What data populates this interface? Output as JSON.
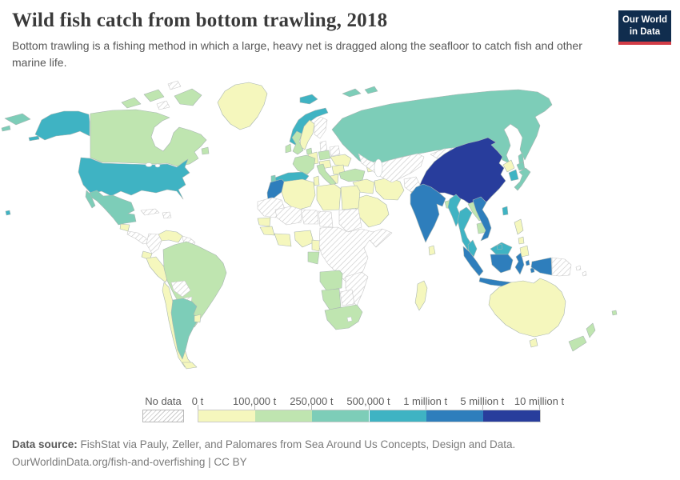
{
  "header": {
    "title": "Wild fish catch from bottom trawling, 2018",
    "subtitle": "Bottom trawling is a fishing method in which a large, heavy net is dragged along the seafloor to catch fish and other marine life."
  },
  "logo": {
    "line1": "Our World",
    "line2": "in Data",
    "bg_color": "#102d4e",
    "accent_color": "#d23c46"
  },
  "legend": {
    "no_data_label": "No data",
    "tick_labels": [
      "0 t",
      "100,000 t",
      "250,000 t",
      "500,000 t",
      "1 million t",
      "5 million t",
      "10 million t"
    ],
    "bin_colors": [
      "#f5f7bd",
      "#bfe5b0",
      "#7dcdb8",
      "#3fb3c3",
      "#2e7ebc",
      "#283d9c"
    ]
  },
  "footer": {
    "source_label": "Data source:",
    "source_text": " FishStat via Pauly, Zeller, and Palomares from Sea Around Us Concepts, Design and Data.",
    "link_text": "OurWorldinData.org/fish-and-overfishing",
    "separator": " | ",
    "license_text": "CC BY"
  },
  "chart_data": {
    "type": "choropleth",
    "title": "Wild fish catch from bottom trawling, 2018",
    "unit": "tonnes",
    "bin_edges": [
      "0 t",
      "100,000 t",
      "250,000 t",
      "500,000 t",
      "1 million t",
      "5 million t",
      "10 million t"
    ],
    "no_data_label": "No data",
    "countries": [
      {
        "id": "china",
        "name": "China",
        "bin": 5
      },
      {
        "id": "india",
        "name": "India",
        "bin": 4
      },
      {
        "id": "vietnam",
        "name": "Vietnam",
        "bin": 4
      },
      {
        "id": "indonesia",
        "name": "Indonesia",
        "bin": 4
      },
      {
        "id": "morocco",
        "name": "Morocco",
        "bin": 4
      },
      {
        "id": "united-states",
        "name": "United States",
        "bin": 3
      },
      {
        "id": "spain",
        "name": "Spain",
        "bin": 3
      },
      {
        "id": "norway",
        "name": "Norway",
        "bin": 3
      },
      {
        "id": "iceland",
        "name": "Iceland",
        "bin": 3
      },
      {
        "id": "myanmar",
        "name": "Myanmar",
        "bin": 3
      },
      {
        "id": "thailand",
        "name": "Thailand",
        "bin": 3
      },
      {
        "id": "south-korea",
        "name": "South Korea",
        "bin": 3
      },
      {
        "id": "taiwan",
        "name": "Taiwan",
        "bin": 3
      },
      {
        "id": "malaysia",
        "name": "Malaysia",
        "bin": 3
      },
      {
        "id": "brunei",
        "name": "Brunei",
        "bin": 3
      },
      {
        "id": "russia",
        "name": "Russia",
        "bin": 2
      },
      {
        "id": "mexico",
        "name": "Mexico",
        "bin": 2
      },
      {
        "id": "argentina",
        "name": "Argentina",
        "bin": 2
      },
      {
        "id": "japan",
        "name": "Japan",
        "bin": 2
      },
      {
        "id": "portugal",
        "name": "Portugal",
        "bin": 2
      },
      {
        "id": "canada",
        "name": "Canada",
        "bin": 1
      },
      {
        "id": "brazil",
        "name": "Brazil",
        "bin": 1
      },
      {
        "id": "united-kingdom",
        "name": "United Kingdom",
        "bin": 1
      },
      {
        "id": "ireland",
        "name": "Ireland",
        "bin": 1
      },
      {
        "id": "france",
        "name": "France",
        "bin": 1
      },
      {
        "id": "poland",
        "name": "Poland",
        "bin": 1
      },
      {
        "id": "italy",
        "name": "Italy",
        "bin": 1
      },
      {
        "id": "denmark",
        "name": "Denmark",
        "bin": 1
      },
      {
        "id": "turkey",
        "name": "Turkey",
        "bin": 1
      },
      {
        "id": "gabon",
        "name": "Gabon",
        "bin": 1
      },
      {
        "id": "angola",
        "name": "Angola",
        "bin": 1
      },
      {
        "id": "namibia",
        "name": "Namibia",
        "bin": 1
      },
      {
        "id": "south-africa",
        "name": "South Africa",
        "bin": 1
      },
      {
        "id": "new-zealand",
        "name": "New Zealand",
        "bin": 1
      },
      {
        "id": "bangladesh",
        "name": "Bangladesh",
        "bin": 1
      },
      {
        "id": "laos",
        "name": "Laos",
        "bin": 1
      },
      {
        "id": "cambodia",
        "name": "Cambodia",
        "bin": 1
      },
      {
        "id": "fiji",
        "name": "Fiji",
        "bin": 1
      },
      {
        "id": "greenland",
        "name": "Greenland",
        "bin": 0
      },
      {
        "id": "sweden",
        "name": "Sweden",
        "bin": 0
      },
      {
        "id": "germany",
        "name": "Germany",
        "bin": 0
      },
      {
        "id": "central-europe",
        "name": "Austria / Hungary",
        "bin": 0
      },
      {
        "id": "ukraine",
        "name": "Ukraine",
        "bin": 0
      },
      {
        "id": "romania",
        "name": "Romania",
        "bin": 0
      },
      {
        "id": "greece",
        "name": "Greece",
        "bin": 0
      },
      {
        "id": "caucasus",
        "name": "Georgia / Azerbaijan",
        "bin": 0
      },
      {
        "id": "algeria",
        "name": "Algeria",
        "bin": 0
      },
      {
        "id": "tunisia",
        "name": "Tunisia",
        "bin": 0
      },
      {
        "id": "libya",
        "name": "Libya",
        "bin": 0
      },
      {
        "id": "egypt",
        "name": "Egypt",
        "bin": 0
      },
      {
        "id": "senegal",
        "name": "Senegal",
        "bin": 0
      },
      {
        "id": "guinea",
        "name": "Guinea",
        "bin": 0
      },
      {
        "id": "ghana",
        "name": "Ghana / Côte d'Ivoire",
        "bin": 0
      },
      {
        "id": "nigeria",
        "name": "Nigeria",
        "bin": 0
      },
      {
        "id": "cameroon",
        "name": "Cameroon",
        "bin": 0
      },
      {
        "id": "madagascar",
        "name": "Madagascar",
        "bin": 0
      },
      {
        "id": "saudi-arabia",
        "name": "Saudi Arabia",
        "bin": 0
      },
      {
        "id": "iran",
        "name": "Iran",
        "bin": 0
      },
      {
        "id": "iraq",
        "name": "Iraq / Syria",
        "bin": 0
      },
      {
        "id": "pakistan",
        "name": "Pakistan",
        "bin": 0
      },
      {
        "id": "north-korea",
        "name": "North Korea",
        "bin": 0
      },
      {
        "id": "philippines",
        "name": "Philippines",
        "bin": 0
      },
      {
        "id": "sri-lanka",
        "name": "Sri Lanka",
        "bin": 0
      },
      {
        "id": "australia",
        "name": "Australia",
        "bin": 0
      },
      {
        "id": "chile",
        "name": "Chile",
        "bin": 0
      },
      {
        "id": "peru",
        "name": "Peru",
        "bin": 0
      },
      {
        "id": "ecuador",
        "name": "Ecuador",
        "bin": 0
      },
      {
        "id": "venezuela",
        "name": "Venezuela",
        "bin": 0
      },
      {
        "id": "uruguay",
        "name": "Uruguay",
        "bin": 0
      },
      {
        "id": "guatemala",
        "name": "Guatemala",
        "bin": 0
      },
      {
        "id": "mongolia",
        "name": "Mongolia",
        "bin": "no_data"
      },
      {
        "id": "kazakhstan",
        "name": "Kazakhstan / Central Asia",
        "bin": "no_data"
      },
      {
        "id": "afghanistan",
        "name": "Afghanistan",
        "bin": "no_data"
      },
      {
        "id": "finland",
        "name": "Finland",
        "bin": "no_data"
      },
      {
        "id": "belarus",
        "name": "Belarus",
        "bin": "no_data"
      },
      {
        "id": "baltics",
        "name": "Baltic states",
        "bin": "no_data"
      },
      {
        "id": "colombia",
        "name": "Colombia",
        "bin": "no_data"
      },
      {
        "id": "bolivia",
        "name": "Bolivia",
        "bin": "no_data"
      },
      {
        "id": "paraguay",
        "name": "Paraguay",
        "bin": "no_data"
      },
      {
        "id": "guyana",
        "name": "Guyana / Suriname",
        "bin": "no_data"
      },
      {
        "id": "cuba",
        "name": "Cuba",
        "bin": "no_data"
      },
      {
        "id": "hispaniola",
        "name": "Haiti / Dominican Rep.",
        "bin": "no_data"
      },
      {
        "id": "central-america",
        "name": "Central America",
        "bin": "no_data"
      },
      {
        "id": "western-sahara",
        "name": "Western Sahara / Mauritania",
        "bin": "no_data"
      },
      {
        "id": "mali",
        "name": "Mali",
        "bin": "no_data"
      },
      {
        "id": "niger",
        "name": "Niger",
        "bin": "no_data"
      },
      {
        "id": "chad",
        "name": "Chad",
        "bin": "no_data"
      },
      {
        "id": "sudan",
        "name": "Sudan",
        "bin": "no_data"
      },
      {
        "id": "east-africa",
        "name": "Central & East Africa",
        "bin": "no_data"
      },
      {
        "id": "botswana",
        "name": "Botswana",
        "bin": "no_data"
      },
      {
        "id": "zambia-mozambique",
        "name": "Zambia / Zimbabwe / Mozambique",
        "bin": "no_data"
      },
      {
        "id": "papua-new-guinea",
        "name": "Papua New Guinea",
        "bin": "no_data"
      },
      {
        "id": "solomon-islands",
        "name": "Solomon Islands",
        "bin": "no_data"
      },
      {
        "id": "arctic-islands",
        "name": "Arctic islands",
        "bin": "no_data"
      }
    ]
  }
}
